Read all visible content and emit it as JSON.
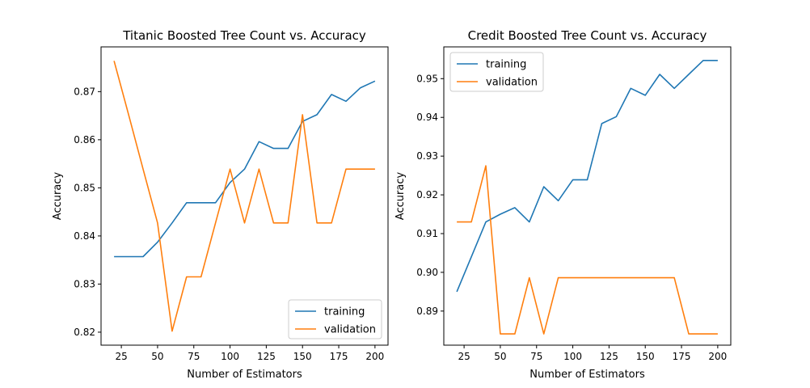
{
  "colors": {
    "training": "#1f77b4",
    "validation": "#ff7f0e"
  },
  "chart_data": [
    {
      "type": "line",
      "title": "Titanic Boosted Tree Count vs. Accuracy",
      "xlabel": "Number of Estimators",
      "ylabel": "Accuracy",
      "xlim": [
        11,
        209
      ],
      "ylim": [
        0.8173,
        0.8793
      ],
      "xticks": [
        25,
        50,
        75,
        100,
        125,
        150,
        175,
        200
      ],
      "yticks": [
        0.82,
        0.83,
        0.84,
        0.85,
        0.86,
        0.87
      ],
      "ytick_labels": [
        "0.82",
        "0.83",
        "0.84",
        "0.85",
        "0.86",
        "0.87"
      ],
      "legend_position": "bottom-right",
      "x": [
        20,
        30,
        40,
        50,
        60,
        70,
        80,
        90,
        100,
        110,
        120,
        130,
        140,
        150,
        160,
        170,
        180,
        190,
        200
      ],
      "series": [
        {
          "name": "training",
          "color_key": "training",
          "values": [
            0.8357,
            0.8357,
            0.8357,
            0.8387,
            0.8427,
            0.8469,
            0.8469,
            0.8469,
            0.8511,
            0.8539,
            0.8596,
            0.8582,
            0.8582,
            0.8638,
            0.8652,
            0.8694,
            0.868,
            0.8708,
            0.8722
          ]
        },
        {
          "name": "validation",
          "color_key": "validation",
          "values": [
            0.8764,
            0.8652,
            0.8539,
            0.8427,
            0.8202,
            0.8315,
            0.8315,
            0.8427,
            0.8539,
            0.8427,
            0.8539,
            0.8427,
            0.8427,
            0.8652,
            0.8427,
            0.8427,
            0.8539,
            0.8539,
            0.8539
          ]
        }
      ]
    },
    {
      "type": "line",
      "title": "Credit Boosted Tree Count  vs. Accuracy",
      "xlabel": "Number of Estimators",
      "ylabel": "Accuracy",
      "xlim": [
        11,
        209
      ],
      "ylim": [
        0.8812,
        0.9582
      ],
      "xticks": [
        25,
        50,
        75,
        100,
        125,
        150,
        175,
        200
      ],
      "yticks": [
        0.89,
        0.9,
        0.91,
        0.92,
        0.93,
        0.94,
        0.95
      ],
      "ytick_labels": [
        "0.89",
        "0.90",
        "0.91",
        "0.92",
        "0.93",
        "0.94",
        "0.95"
      ],
      "legend_position": "top-left",
      "x": [
        20,
        30,
        40,
        50,
        60,
        70,
        80,
        90,
        100,
        110,
        120,
        130,
        140,
        150,
        160,
        170,
        180,
        190,
        200
      ],
      "series": [
        {
          "name": "training",
          "color_key": "training",
          "values": [
            0.895,
            0.904,
            0.913,
            0.915,
            0.9167,
            0.913,
            0.9221,
            0.9185,
            0.9239,
            0.9239,
            0.9384,
            0.9402,
            0.9475,
            0.9457,
            0.9511,
            0.9475,
            0.9511,
            0.9547,
            0.9547
          ]
        },
        {
          "name": "validation",
          "color_key": "validation",
          "values": [
            0.913,
            0.913,
            0.9275,
            0.8841,
            0.8841,
            0.8986,
            0.8841,
            0.8986,
            0.8986,
            0.8986,
            0.8986,
            0.8986,
            0.8986,
            0.8986,
            0.8986,
            0.8986,
            0.8841,
            0.8841,
            0.8841
          ]
        }
      ]
    }
  ]
}
